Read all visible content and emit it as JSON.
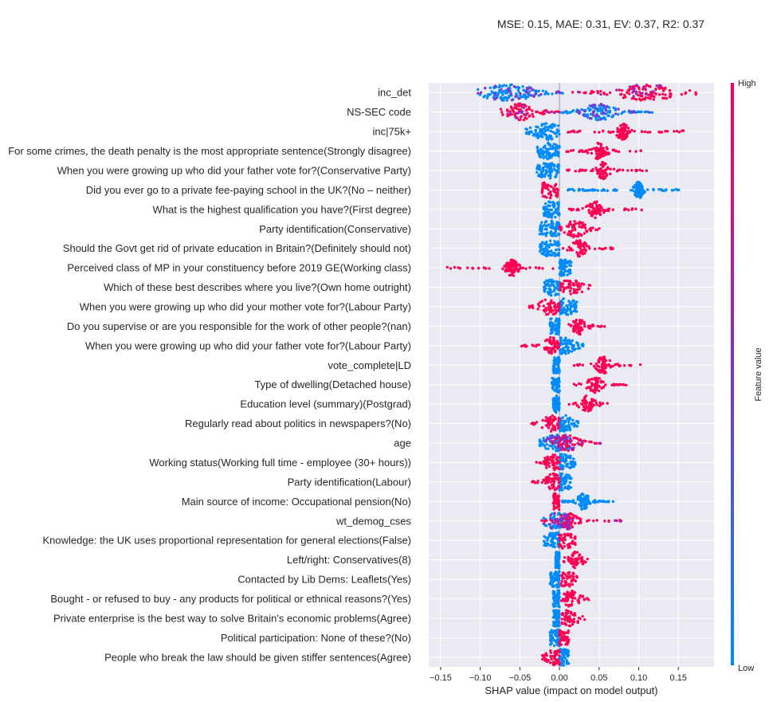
{
  "metrics_text": "MSE: 0.15, MAE: 0.31, EV: 0.37, R2: 0.37",
  "colors": {
    "high": "#ff0052",
    "low": "#008bfb",
    "plot_bg": "#eaeaf2",
    "grid": "#ffffff",
    "zero_line": "#999999"
  },
  "chart_data": {
    "type": "scatter",
    "subtype": "shap-beeswarm",
    "xlabel": "SHAP value (impact on model output)",
    "xlim": [
      -0.165,
      0.195
    ],
    "xticks": [
      -0.15,
      -0.1,
      -0.05,
      0.0,
      0.05,
      0.1,
      0.15
    ],
    "xtick_labels": [
      "−0.15",
      "−0.10",
      "−0.05",
      "0.00",
      "0.05",
      "0.10",
      "0.15"
    ],
    "colorbar": {
      "title": "Feature value",
      "high_label": "High",
      "low_label": "Low"
    },
    "features": [
      {
        "name": "inc_det",
        "low": {
          "min": -0.105,
          "max": 0.005,
          "center": -0.065,
          "width": 0.018
        },
        "high": {
          "min": 0.015,
          "max": 0.178,
          "center": 0.11,
          "width": 0.02
        },
        "pattern": "mixed"
      },
      {
        "name": "NS-SEC code",
        "low": {
          "min": 0.0,
          "max": 0.12,
          "center": 0.05,
          "width": 0.01
        },
        "high": {
          "min": -0.075,
          "max": 0.0,
          "center": -0.05,
          "width": 0.01
        },
        "pattern": "mixed"
      },
      {
        "name": "inc|75k+",
        "low": {
          "min": -0.045,
          "max": 0.0,
          "center": -0.016,
          "width": 0.01
        },
        "high": {
          "min": 0.005,
          "max": 0.158,
          "center": 0.08,
          "width": 0.004
        }
      },
      {
        "name": "For some crimes, the death penalty is the most appropriate sentence(Strongly disagree)",
        "low": {
          "min": -0.028,
          "max": 0.0,
          "center": -0.014,
          "width": 0.009
        },
        "high": {
          "min": 0.005,
          "max": 0.112,
          "center": 0.05,
          "width": 0.005
        }
      },
      {
        "name": "When you were growing up who did your father vote for?(Conservative Party)",
        "low": {
          "min": -0.03,
          "max": 0.0,
          "center": -0.014,
          "width": 0.009
        },
        "high": {
          "min": 0.007,
          "max": 0.117,
          "center": 0.055,
          "width": 0.004
        }
      },
      {
        "name": "Did you ever go to a private fee-paying school in the UK?(No – neither)",
        "low": {
          "min": 0.01,
          "max": 0.157,
          "center": 0.1,
          "width": 0.003
        },
        "high": {
          "min": -0.022,
          "max": -0.002,
          "center": -0.012,
          "width": 0.009
        }
      },
      {
        "name": "What is the highest qualification you have?(First degree)",
        "low": {
          "min": -0.02,
          "max": 0.0,
          "center": -0.01,
          "width": 0.009
        },
        "high": {
          "min": 0.012,
          "max": 0.107,
          "center": 0.045,
          "width": 0.005
        }
      },
      {
        "name": "Party identification(Conservative)",
        "low": {
          "min": -0.025,
          "max": 0.0,
          "center": -0.012,
          "width": 0.009
        },
        "high": {
          "min": 0.0,
          "max": 0.052,
          "center": 0.02,
          "width": 0.007
        }
      },
      {
        "name": "Should the Govt get rid of private education in Britain?(Definitely should not)",
        "low": {
          "min": -0.025,
          "max": 0.0,
          "center": -0.01,
          "width": 0.009
        },
        "high": {
          "min": 0.0,
          "max": 0.07,
          "center": 0.025,
          "width": 0.005
        }
      },
      {
        "name": "Perceived class of MP in your constituency before 2019 GE(Working class)",
        "low": {
          "min": 0.0,
          "max": 0.015,
          "center": 0.007,
          "width": 0.009
        },
        "high": {
          "min": -0.145,
          "max": -0.002,
          "center": -0.06,
          "width": 0.004
        }
      },
      {
        "name": "Which of these best describes where you live?(Own home outright)",
        "low": {
          "min": -0.02,
          "max": 0.0,
          "center": -0.008,
          "width": 0.009
        },
        "high": {
          "min": 0.0,
          "max": 0.04,
          "center": 0.015,
          "width": 0.008
        }
      },
      {
        "name": "When you were growing up who did your mother vote for?(Labour Party)",
        "low": {
          "min": 0.0,
          "max": 0.022,
          "center": 0.008,
          "width": 0.009
        },
        "high": {
          "min": -0.038,
          "max": 0.0,
          "center": -0.012,
          "width": 0.007
        }
      },
      {
        "name": "Do you supervise or are you responsible for the work of other people?(nan)",
        "low": {
          "min": -0.012,
          "max": 0.0,
          "center": -0.005,
          "width": 0.008
        },
        "high": {
          "min": 0.005,
          "max": 0.058,
          "center": 0.025,
          "width": 0.005
        }
      },
      {
        "name": "When you were growing up who did your father vote for?(Labour Party)",
        "low": {
          "min": 0.0,
          "max": 0.03,
          "center": 0.005,
          "width": 0.008
        },
        "high": {
          "min": -0.05,
          "max": 0.0,
          "center": -0.01,
          "width": 0.005
        }
      },
      {
        "name": "vote_complete|LD",
        "low": {
          "min": -0.008,
          "max": 0.0,
          "center": -0.004,
          "width": 0.008
        },
        "high": {
          "min": 0.018,
          "max": 0.105,
          "center": 0.055,
          "width": 0.005
        }
      },
      {
        "name": "Type of dwelling(Detached house)",
        "low": {
          "min": -0.01,
          "max": 0.0,
          "center": -0.004,
          "width": 0.008
        },
        "high": {
          "min": 0.01,
          "max": 0.086,
          "center": 0.045,
          "width": 0.005
        }
      },
      {
        "name": "Education level (summary)(Postgrad)",
        "low": {
          "min": -0.008,
          "max": 0.0,
          "center": -0.004,
          "width": 0.008
        },
        "high": {
          "min": 0.012,
          "max": 0.064,
          "center": 0.035,
          "width": 0.005
        }
      },
      {
        "name": "Regularly read about politics in newspapers?(No)",
        "low": {
          "min": 0.0,
          "max": 0.025,
          "center": 0.005,
          "width": 0.007
        },
        "high": {
          "min": -0.037,
          "max": 0.0,
          "center": -0.01,
          "width": 0.006
        }
      },
      {
        "name": "age",
        "low": {
          "min": -0.025,
          "max": 0.015,
          "center": -0.003,
          "width": 0.011
        },
        "high": {
          "min": -0.01,
          "max": 0.055,
          "center": 0.01,
          "width": 0.008
        },
        "pattern": "mixed"
      },
      {
        "name": "Working status(Working full time - employee (30+ hours))",
        "low": {
          "min": 0.0,
          "max": 0.02,
          "center": 0.005,
          "width": 0.008
        },
        "high": {
          "min": -0.03,
          "max": 0.0,
          "center": -0.008,
          "width": 0.006
        }
      },
      {
        "name": "Party identification(Labour)",
        "low": {
          "min": 0.0,
          "max": 0.015,
          "center": 0.004,
          "width": 0.008
        },
        "high": {
          "min": -0.035,
          "max": 0.0,
          "center": -0.008,
          "width": 0.005
        }
      },
      {
        "name": "Main source of income: Occupational pension(No)",
        "low": {
          "min": 0.002,
          "max": 0.068,
          "center": 0.03,
          "width": 0.004
        },
        "high": {
          "min": -0.008,
          "max": 0.0,
          "center": -0.003,
          "width": 0.008
        }
      },
      {
        "name": "wt_demog_cses",
        "low": {
          "min": -0.02,
          "max": 0.012,
          "center": -0.002,
          "width": 0.01
        },
        "high": {
          "min": -0.025,
          "max": 0.08,
          "center": 0.01,
          "width": 0.006
        },
        "pattern": "mixed"
      },
      {
        "name": "Knowledge: the UK uses proportional representation for general elections(False)",
        "low": {
          "min": -0.02,
          "max": 0.0,
          "center": -0.005,
          "width": 0.008
        },
        "high": {
          "min": 0.0,
          "max": 0.02,
          "center": 0.006,
          "width": 0.008
        }
      },
      {
        "name": "Left/right: Conservatives(8)",
        "low": {
          "min": -0.005,
          "max": 0.0,
          "center": -0.002,
          "width": 0.007
        },
        "high": {
          "min": 0.002,
          "max": 0.043,
          "center": 0.02,
          "width": 0.005
        }
      },
      {
        "name": "Contacted by Lib Dems: Leaflets(Yes)",
        "low": {
          "min": -0.012,
          "max": 0.0,
          "center": -0.004,
          "width": 0.008
        },
        "high": {
          "min": 0.002,
          "max": 0.023,
          "center": 0.01,
          "width": 0.006
        }
      },
      {
        "name": "Bought - or refused to buy - any products for political or ethnical reasons?(Yes)",
        "low": {
          "min": -0.008,
          "max": 0.0,
          "center": -0.003,
          "width": 0.008
        },
        "high": {
          "min": 0.002,
          "max": 0.038,
          "center": 0.015,
          "width": 0.006
        }
      },
      {
        "name": "Private enterprise is the best way to solve Britain's economic problems(Agree)",
        "low": {
          "min": -0.008,
          "max": 0.0,
          "center": -0.003,
          "width": 0.008
        },
        "high": {
          "min": 0.002,
          "max": 0.033,
          "center": 0.012,
          "width": 0.006
        }
      },
      {
        "name": "Political participation: None of these?(No)",
        "low": {
          "min": -0.012,
          "max": 0.0,
          "center": -0.005,
          "width": 0.008
        },
        "high": {
          "min": 0.0,
          "max": 0.012,
          "center": 0.005,
          "width": 0.008
        }
      },
      {
        "name": "People who break the law should be given stiffer sentences(Agree)",
        "low": {
          "min": 0.0,
          "max": 0.012,
          "center": 0.004,
          "width": 0.008
        },
        "high": {
          "min": -0.022,
          "max": 0.0,
          "center": -0.005,
          "width": 0.006
        }
      }
    ]
  }
}
